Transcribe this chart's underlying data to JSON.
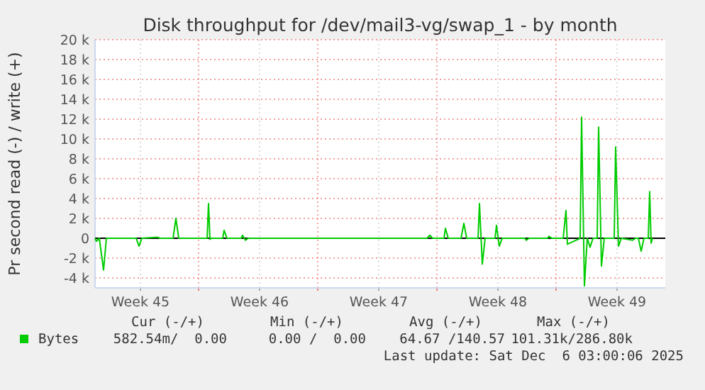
{
  "chart_data": {
    "type": "line",
    "title": "Disk throughput for /dev/mail3-vg/swap_1 - by month",
    "ylabel": "Pr second read (-) / write (+)",
    "x": [
      "2025-11-02T15:00",
      "2025-11-02T17:00",
      "2025-11-02T21:00",
      "2025-11-03T03:00",
      "2025-11-03T07:00",
      "2025-11-05T01:00",
      "2025-11-05T05:00",
      "2025-11-05T09:00",
      "2025-11-06T07:00",
      "2025-11-06T11:00",
      "2025-11-07T05:00",
      "2025-11-07T09:00",
      "2025-11-07T13:00",
      "2025-11-09T05:00",
      "2025-11-09T07:00",
      "2025-11-09T09:00",
      "2025-11-09T11:00",
      "2025-11-10T03:00",
      "2025-11-10T05:00",
      "2025-11-10T09:00",
      "2025-11-11T05:00",
      "2025-11-11T07:00",
      "2025-11-11T11:00",
      "2025-11-11T15:00",
      "2025-11-22T03:00",
      "2025-11-22T07:00",
      "2025-11-22T11:00",
      "2025-11-23T03:00",
      "2025-11-23T05:00",
      "2025-11-23T09:00",
      "2025-11-24T03:00",
      "2025-11-24T07:00",
      "2025-11-24T11:00",
      "2025-11-25T03:00",
      "2025-11-25T05:00",
      "2025-11-25T09:00",
      "2025-11-25T13:00",
      "2025-11-26T03:00",
      "2025-11-26T05:00",
      "2025-11-26T09:00",
      "2025-11-26T13:00",
      "2025-11-27T21:00",
      "2025-11-27T23:00",
      "2025-11-28T03:00",
      "2025-11-29T05:00",
      "2025-11-29T07:00",
      "2025-11-29T11:00",
      "2025-11-30T03:00",
      "2025-11-30T07:00",
      "2025-11-30T09:00",
      "2025-11-30T15:00",
      "2025-12-01T03:00",
      "2025-12-01T05:00",
      "2025-12-01T09:00",
      "2025-12-01T13:00",
      "2025-12-01T17:00",
      "2025-12-01T21:00",
      "2025-12-02T03:00",
      "2025-12-02T05:00",
      "2025-12-02T09:00",
      "2025-12-02T13:00",
      "2025-12-03T03:00",
      "2025-12-03T05:00",
      "2025-12-03T09:00",
      "2025-12-03T13:00",
      "2025-12-04T05:00",
      "2025-12-04T09:00",
      "2025-12-04T13:00",
      "2025-12-04T17:00",
      "2025-12-04T21:00",
      "2025-12-05T03:00",
      "2025-12-05T05:00",
      "2025-12-05T07:00",
      "2025-12-05T09:00"
    ],
    "series": [
      {
        "name": "Bytes",
        "color": "#00cc00",
        "values": [
          0,
          -300,
          0,
          -3200,
          0,
          0,
          -800,
          0,
          100,
          0,
          0,
          2000,
          0,
          0,
          3500,
          -100,
          0,
          0,
          800,
          0,
          0,
          300,
          -200,
          0,
          0,
          300,
          0,
          0,
          1000,
          0,
          0,
          1500,
          0,
          0,
          3500,
          -2600,
          0,
          0,
          1300,
          -800,
          0,
          0,
          -200,
          0,
          0,
          200,
          0,
          0,
          2800,
          -600,
          -400,
          0,
          12200,
          -4800,
          0,
          -900,
          0,
          0,
          11200,
          -2800,
          0,
          0,
          9200,
          -800,
          0,
          -200,
          0,
          0,
          -1300,
          0,
          0,
          4700,
          -500,
          0
        ]
      }
    ],
    "xlim": [
      "2025-11-02T15:00",
      "2025-12-06T03:00"
    ],
    "xticks": [
      {
        "value": "2025-11-05T07:00",
        "label": "Week 45"
      },
      {
        "value": "2025-11-08T17:00",
        "label": null
      },
      {
        "value": "2025-11-12T07:00",
        "label": "Week 46"
      },
      {
        "value": "2025-11-15T17:00",
        "label": null
      },
      {
        "value": "2025-11-19T07:00",
        "label": "Week 47"
      },
      {
        "value": "2025-11-22T17:00",
        "label": null
      },
      {
        "value": "2025-11-26T07:00",
        "label": "Week 48"
      },
      {
        "value": "2025-11-29T17:00",
        "label": null
      },
      {
        "value": "2025-12-03T07:00",
        "label": "Week 49"
      }
    ],
    "ylim": [
      -5000,
      20000
    ],
    "yticks": [
      {
        "value": -4000,
        "label": "-4 k"
      },
      {
        "value": -2000,
        "label": "-2 k"
      },
      0,
      {
        "value": 2000,
        "label": "2 k"
      },
      {
        "value": 4000,
        "label": "4 k"
      },
      {
        "value": 6000,
        "label": "6 k"
      },
      {
        "value": 8000,
        "label": "8 k"
      },
      {
        "value": 10000,
        "label": "10 k"
      },
      {
        "value": 12000,
        "label": "12 k"
      },
      {
        "value": 14000,
        "label": "14 k"
      },
      {
        "value": 16000,
        "label": "16 k"
      },
      {
        "value": 18000,
        "label": "18 k"
      },
      {
        "value": 20000,
        "label": "20 k"
      }
    ],
    "ref_lines": [
      {
        "axis": "y",
        "value": 0,
        "color": "#000000"
      }
    ],
    "grid": true,
    "legend": "bottom left",
    "annotations": [
      "Cur (-/+)",
      "Min (-/+)",
      "Avg (-/+)",
      "Max (-/+)",
      "582.54m/  0.00",
      "0.00 /  0.00",
      "64.67 /140.57",
      "101.31k/286.80k",
      "Last update: Sat Dec  6 03:00:06 2025"
    ]
  }
}
